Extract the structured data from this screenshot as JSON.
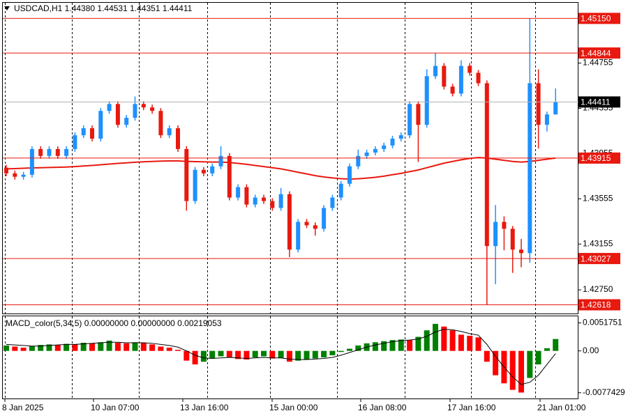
{
  "chart_data": [
    {
      "type": "candlestick",
      "title": "USDCAD,H1  1.44380 1.44531 1.44351 1.44411",
      "up_color": "#1e90ff",
      "down_color": "#e8190f",
      "open": [
        1.4383,
        1.4378,
        1.4375,
        1.43768,
        1.43995,
        1.43934,
        1.43995,
        1.43934,
        1.43995,
        1.44117,
        1.44179,
        1.44087,
        1.44332,
        1.44393,
        1.44209,
        1.44271,
        1.44393,
        1.44363,
        1.44332,
        1.44117,
        1.44179,
        1.43995,
        1.43535,
        1.43811,
        1.4378,
        1.43842,
        1.43934,
        1.43566,
        1.43658,
        1.43504,
        1.43566,
        1.43535,
        1.43474,
        1.43596,
        1.43106,
        1.43351,
        1.43321,
        1.4329,
        1.43474,
        1.43566,
        1.43688,
        1.43842,
        1.43934,
        1.43964,
        1.43995,
        1.44026,
        1.44087,
        1.44117,
        1.44393,
        1.44209,
        1.44639,
        1.4473,
        1.44547,
        1.44485,
        1.4473,
        1.44669,
        1.44577,
        1.43137,
        1.43351,
        1.4329,
        1.43106,
        1.43075,
        1.44577,
        1.44209,
        1.44301
      ],
      "high": [
        1.43855,
        1.43805,
        1.43793,
        1.4402,
        1.4402,
        1.4402,
        1.4402,
        1.4402,
        1.44142,
        1.44204,
        1.44204,
        1.44357,
        1.44418,
        1.44418,
        1.44296,
        1.4446,
        1.44418,
        1.44388,
        1.44357,
        1.44204,
        1.44204,
        1.4402,
        1.43836,
        1.43836,
        1.43867,
        1.4402,
        1.43959,
        1.43683,
        1.43683,
        1.43591,
        1.43591,
        1.4356,
        1.4365,
        1.43621,
        1.43376,
        1.43376,
        1.43346,
        1.43499,
        1.43591,
        1.43713,
        1.43867,
        1.4399,
        1.43989,
        1.4402,
        1.44051,
        1.44112,
        1.44142,
        1.44418,
        1.44418,
        1.447,
        1.44844,
        1.44755,
        1.44572,
        1.4478,
        1.44755,
        1.44694,
        1.44602,
        1.435,
        1.434,
        1.43315,
        1.432,
        1.4515,
        1.447,
        1.44326,
        1.44531
      ],
      "low": [
        1.43755,
        1.43725,
        1.43725,
        1.43743,
        1.43909,
        1.43909,
        1.43909,
        1.43909,
        1.4397,
        1.44092,
        1.44062,
        1.44062,
        1.44307,
        1.44184,
        1.44184,
        1.44246,
        1.44338,
        1.44307,
        1.44092,
        1.44092,
        1.4397,
        1.4345,
        1.4351,
        1.43755,
        1.43755,
        1.43817,
        1.43541,
        1.43541,
        1.43479,
        1.43479,
        1.4351,
        1.43449,
        1.43449,
        1.4304,
        1.43081,
        1.43296,
        1.4323,
        1.43265,
        1.43449,
        1.43541,
        1.43663,
        1.43817,
        1.43909,
        1.43939,
        1.4397,
        1.44001,
        1.44062,
        1.44092,
        1.4388,
        1.44184,
        1.44614,
        1.44522,
        1.4446,
        1.4446,
        1.44644,
        1.44552,
        1.42618,
        1.428,
        1.431,
        1.429,
        1.4295,
        1.4299,
        1.44,
        1.4415,
        1.44301
      ],
      "close": [
        1.4378,
        1.4375,
        1.43768,
        1.43995,
        1.43934,
        1.43995,
        1.43934,
        1.43995,
        1.44117,
        1.44179,
        1.44087,
        1.44332,
        1.44393,
        1.44209,
        1.44271,
        1.44393,
        1.44363,
        1.44332,
        1.44117,
        1.44179,
        1.43995,
        1.43535,
        1.43811,
        1.4378,
        1.43842,
        1.43934,
        1.43566,
        1.43658,
        1.43504,
        1.43566,
        1.43535,
        1.43474,
        1.43596,
        1.43106,
        1.43351,
        1.43321,
        1.4329,
        1.43474,
        1.43566,
        1.43688,
        1.43842,
        1.43934,
        1.43964,
        1.43995,
        1.44026,
        1.44087,
        1.44117,
        1.44393,
        1.44209,
        1.44639,
        1.4473,
        1.44547,
        1.44485,
        1.4473,
        1.44669,
        1.44577,
        1.43137,
        1.43351,
        1.4329,
        1.43106,
        1.43075,
        1.44577,
        1.44209,
        1.44301,
        1.44411
      ],
      "series": [
        {
          "color": "#e8190f",
          "values": [
            1.4382,
            1.43822,
            1.43825,
            1.43828,
            1.4383,
            1.43832,
            1.43834,
            1.43836,
            1.4384,
            1.43845,
            1.4385,
            1.43856,
            1.43862,
            1.43868,
            1.43873,
            1.43878,
            1.43882,
            1.43885,
            1.43888,
            1.4389,
            1.4389,
            1.43886,
            1.43884,
            1.43882,
            1.4388,
            1.4388,
            1.43876,
            1.43868,
            1.4386,
            1.4385,
            1.4384,
            1.4383,
            1.4382,
            1.43805,
            1.4379,
            1.43775,
            1.4376,
            1.43748,
            1.4374,
            1.43733,
            1.4373,
            1.43732,
            1.43738,
            1.43745,
            1.43755,
            1.43768,
            1.4378,
            1.43795,
            1.4381,
            1.4383,
            1.4385,
            1.4387,
            1.43885,
            1.439,
            1.43912,
            1.4392,
            1.43915,
            1.43905,
            1.43895,
            1.43885,
            1.4388,
            1.43885,
            1.43895,
            1.43905,
            1.43915
          ]
        }
      ],
      "levels": [
        {
          "value": 1.4515,
          "label": "1.45150"
        },
        1.44844,
        1.43915,
        1.43027,
        1.42618
      ],
      "level_color": "#e8190f",
      "current": 1.44411,
      "ylim": [
        1.42541,
        1.45288
      ],
      "yticks": [
        {
          "value": 1.4275,
          "label": "1.42750"
        },
        1.43155,
        1.43555,
        1.43955,
        1.44355,
        1.44755
      ],
      "xticks": [
        "8 Jan 2025",
        "10 Jan 07:00",
        "13 Jan 16:00",
        "15 Jan 00:00",
        "16 Jan 08:00",
        "17 Jan 16:00",
        "21 Jan 01:00"
      ]
    },
    {
      "type": "macd",
      "title": "MACD_color(5,34,5) 0.00000000 0.00000000 0.00219053",
      "up_color": "#008000",
      "down_color": "#ff0000",
      "values": [
        0.001,
        0.0008,
        0.0006,
        0.0009,
        0.0011,
        0.0012,
        0.0011,
        0.0013,
        0.0012,
        0.0015,
        0.0014,
        0.0016,
        0.0019,
        0.0015,
        0.0014,
        0.0016,
        0.0015,
        0.0012,
        0.0008,
        0.0006,
        0.0002,
        -0.0018,
        -0.0025,
        -0.002,
        -0.0014,
        -0.001,
        -0.0012,
        -0.0015,
        -0.0016,
        -0.0012,
        -0.001,
        -0.0014,
        -0.0013,
        -0.002,
        -0.0018,
        -0.0016,
        -0.0014,
        -0.0012,
        -0.0008,
        -0.0002,
        0.0004,
        0.001,
        0.0014,
        0.0016,
        0.0018,
        0.002,
        0.0021,
        0.002,
        0.0026,
        0.0038,
        0.005,
        0.0045,
        0.0038,
        0.003,
        0.0028,
        0.0025,
        -0.002,
        -0.0045,
        -0.006,
        -0.0072,
        -0.0077,
        -0.005,
        -0.0025,
        0.0005,
        0.0022
      ],
      "series": [
        {
          "color": "#000000",
          "values": [
            0.0012,
            0.0011,
            0.001,
            0.0009,
            0.0009,
            0.001,
            0.0011,
            0.0012,
            0.0012,
            0.0013,
            0.0014,
            0.0015,
            0.0016,
            0.0016,
            0.0015,
            0.0015,
            0.0015,
            0.0014,
            0.0012,
            0.001,
            0.0007,
            0.0,
            -0.0008,
            -0.0013,
            -0.0014,
            -0.0013,
            -0.0012,
            -0.0013,
            -0.0014,
            -0.0013,
            -0.0012,
            -0.0013,
            -0.0013,
            -0.0015,
            -0.0016,
            -0.0016,
            -0.0015,
            -0.0014,
            -0.0012,
            -0.0008,
            -0.0003,
            0.0002,
            0.0007,
            0.0011,
            0.0014,
            0.0017,
            0.0019,
            0.002,
            0.0022,
            0.0027,
            0.0035,
            0.004,
            0.0039,
            0.0036,
            0.0032,
            0.0029,
            0.0012,
            -0.001,
            -0.003,
            -0.0048,
            -0.0062,
            -0.0058,
            -0.0045,
            -0.0025,
            -0.0005
          ]
        }
      ],
      "ylim": [
        -0.0088,
        0.0064
      ],
      "yticks": [
        -0.0077429,
        {
          "value": 0,
          "label": "0.00"
        },
        0.0051751
      ]
    }
  ]
}
